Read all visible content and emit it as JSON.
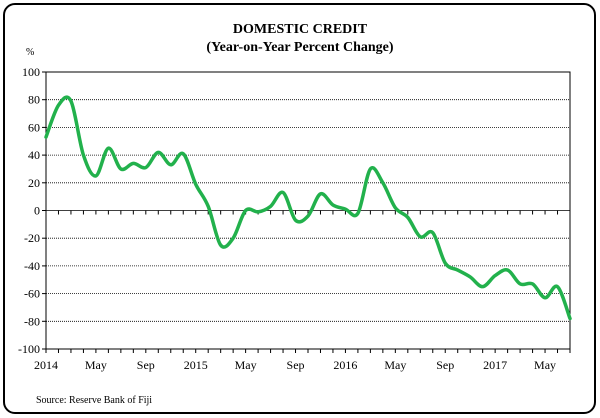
{
  "chart_data": {
    "type": "line",
    "title": "DOMESTIC CREDIT",
    "subtitle": "(Year-on-Year Percent Change)",
    "ylabel": "%",
    "source": "Source:  Reserve Bank of Fiji",
    "ylim": [
      -100,
      100
    ],
    "yticks": [
      100,
      80,
      60,
      40,
      20,
      0,
      -20,
      -40,
      -60,
      -80,
      -100
    ],
    "xticklabels": [
      "2014",
      "May",
      "Sep",
      "2015",
      "May",
      "Sep",
      "2016",
      "May",
      "Sep",
      "2017",
      "May"
    ],
    "x_start": "2014-01",
    "grid": "horizontal",
    "colors": {
      "line": "#22b14c"
    },
    "series": [
      {
        "values": [
          53,
          76,
          79,
          40,
          25,
          45,
          30,
          34,
          31,
          42,
          33,
          41,
          19,
          3,
          -25,
          -20,
          0,
          -1,
          3,
          13,
          -7,
          -4,
          12,
          4,
          1,
          -2,
          30,
          20,
          2,
          -5,
          -19,
          -16,
          -38,
          -43,
          -48,
          -55,
          -47,
          -43,
          -53,
          -53,
          -63,
          -55,
          -78
        ]
      }
    ]
  }
}
